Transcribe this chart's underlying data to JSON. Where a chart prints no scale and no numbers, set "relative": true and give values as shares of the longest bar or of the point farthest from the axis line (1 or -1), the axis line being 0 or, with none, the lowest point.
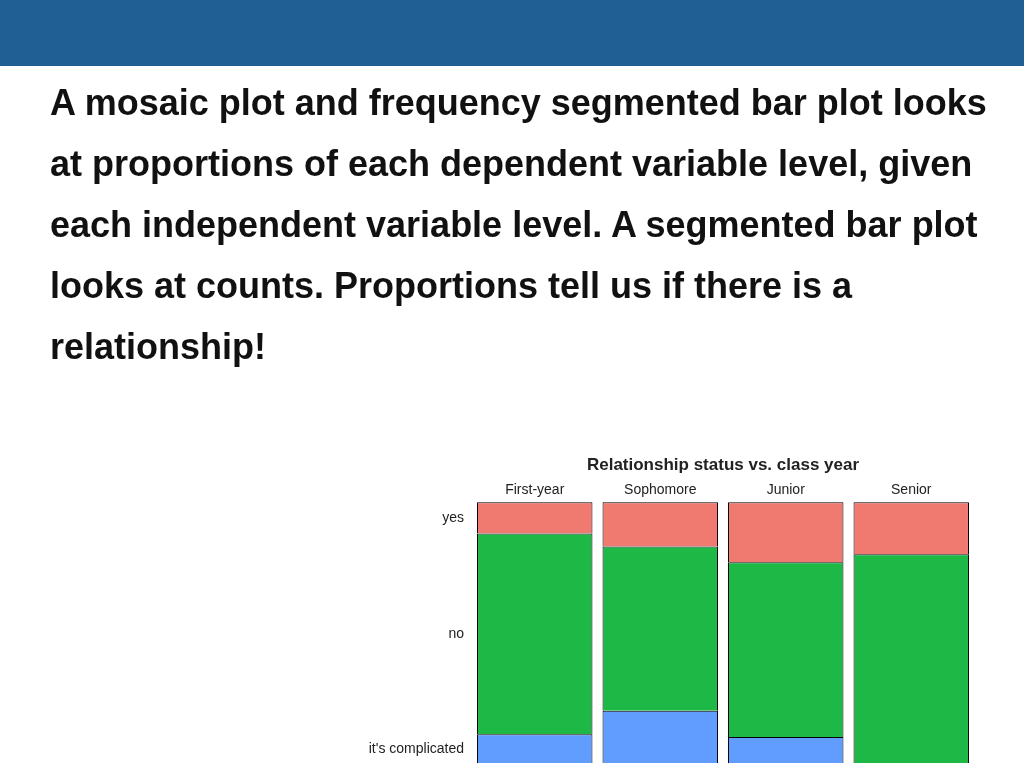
{
  "chart_data": {
    "type": "bar",
    "title": "A mosaic plot and frequency segmented bar plot looks at proportions of each dependent variable level, given each independent variable level. A segmented bar plot looks at counts. Proportions tell us if there is a relationship!",
    "subtitle": "Relationship status vs. class year",
    "categories": [
      "First-year",
      "Sophomore",
      "Junior",
      "Senior"
    ],
    "stacked": true,
    "relative": true,
    "legend": false,
    "grid": false,
    "series": [
      {
        "name": "it's complicated",
        "color": "#619cff",
        "values": [
          0.11,
          0.2,
          0.1,
          0
        ]
      },
      {
        "name": "no",
        "color": "#1db846",
        "values": [
          0.77,
          0.63,
          0.67,
          0.8
        ]
      },
      {
        "name": "yes",
        "color": "#f07a70",
        "values": [
          0.12,
          0.17,
          0.23,
          0.2
        ]
      }
    ]
  }
}
